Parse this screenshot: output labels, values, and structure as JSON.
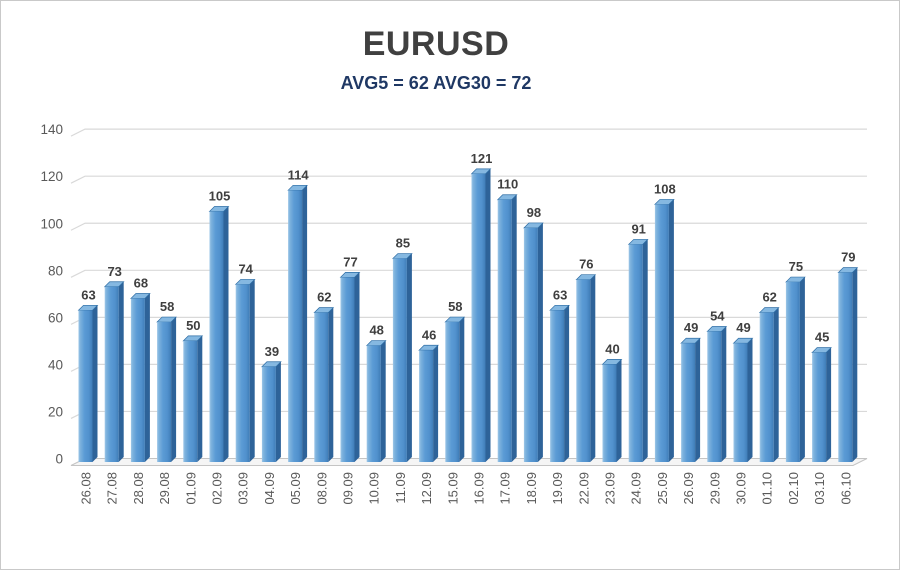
{
  "window": {
    "background": "#ffffff",
    "border_color": "#c9c9c9"
  },
  "chart_data": {
    "type": "bar",
    "title": "EURUSD",
    "subtitle": "AVG5 = 62 AVG30 = 72",
    "categories": [
      "26.08",
      "27.08",
      "28.08",
      "29.08",
      "01.09",
      "02.09",
      "03.09",
      "04.09",
      "05.09",
      "08.09",
      "09.09",
      "10.09",
      "11.09",
      "12.09",
      "15.09",
      "16.09",
      "17.09",
      "18.09",
      "19.09",
      "22.09",
      "23.09",
      "24.09",
      "25.09",
      "26.09",
      "29.09",
      "30.09",
      "01.10",
      "02.10",
      "03.10",
      "06.10"
    ],
    "values": [
      63,
      73,
      68,
      58,
      50,
      105,
      74,
      39,
      114,
      62,
      77,
      48,
      85,
      46,
      58,
      121,
      110,
      98,
      63,
      76,
      40,
      91,
      108,
      49,
      54,
      49,
      62,
      75,
      45,
      79
    ],
    "avg5": 62,
    "avg30": 72,
    "xlabel": "",
    "ylabel": "",
    "ylim": [
      0,
      140
    ],
    "yticks": [
      0,
      20,
      40,
      60,
      80,
      100,
      120,
      140
    ],
    "grid": true,
    "legend": "none",
    "style": "3d-bar",
    "value_labels": true,
    "colors": {
      "bar_face": "#5b9bd5",
      "bar_face_light": "#9ec7e8",
      "bar_face_dark": "#3e7cb6",
      "bar_side": "#2e6399",
      "bar_top": "#85b8e1",
      "bar_edge": "#2d6da5",
      "gridline": "#d9d9d9",
      "floor_fill": "#f5f5f5",
      "floor_edge": "#c4c4c4",
      "value_label": "#3f3f3f",
      "axis_label": "#595959",
      "title": "#404040",
      "subtitle": "#1f3864"
    }
  }
}
